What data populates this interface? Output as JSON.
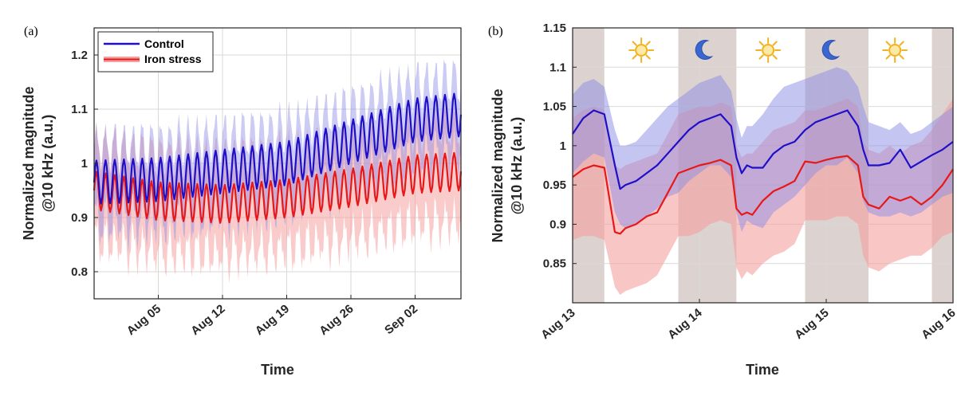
{
  "chart_data": [
    {
      "panel_label": "(a)",
      "type": "line",
      "xlabel": "Time",
      "ylabel_lines": [
        "Normalized magnitude",
        "@10 kHz (a.u.)"
      ],
      "x_range": [
        "2024-07-29",
        "2024-09-07"
      ],
      "ylim": [
        0.75,
        1.25
      ],
      "y_ticks": [
        0.8,
        0.9,
        1.0,
        1.1,
        1.2
      ],
      "y_tick_labels": [
        "0.8",
        "0.9",
        "1",
        "1.1",
        "1.2"
      ],
      "x_ticks": [
        "2024-08-05",
        "2024-08-12",
        "2024-08-19",
        "2024-08-26",
        "2024-09-02"
      ],
      "x_tick_labels": [
        "Aug 05",
        "Aug 12",
        "Aug 19",
        "Aug 26",
        "Sep 02"
      ],
      "grid": true,
      "legend_position": "top-left",
      "series": [
        {
          "name": "Control",
          "color": "#1f10c8",
          "band_color": "#8c8ce6",
          "trend_x": [
            "2024-07-29",
            "2024-08-05",
            "2024-08-12",
            "2024-08-19",
            "2024-08-26",
            "2024-09-02",
            "2024-09-07"
          ],
          "trend_mean": [
            0.965,
            0.97,
            0.985,
            1.0,
            1.04,
            1.08,
            1.09
          ],
          "daily_amplitude": 0.04,
          "band_half_width": 0.05
        },
        {
          "name": "Iron stress",
          "color": "#e81818",
          "band_color": "#f5a0a0",
          "trend_x": [
            "2024-07-29",
            "2024-08-05",
            "2024-08-12",
            "2024-08-19",
            "2024-08-26",
            "2024-09-02",
            "2024-09-07"
          ],
          "trend_mean": [
            0.95,
            0.93,
            0.925,
            0.935,
            0.955,
            0.98,
            0.985
          ],
          "daily_amplitude": 0.035,
          "band_half_width": 0.07
        }
      ]
    },
    {
      "panel_label": "(b)",
      "type": "line",
      "xlabel": "Time",
      "ylabel_lines": [
        "Normalized magnitude",
        "@10 kHz (a.u.)"
      ],
      "x_range": [
        "2024-08-13T00:00",
        "2024-08-16T00:00"
      ],
      "ylim": [
        0.8,
        1.15
      ],
      "y_ticks": [
        0.85,
        0.9,
        0.95,
        1.0,
        1.05,
        1.1,
        1.15
      ],
      "y_tick_labels": [
        "0.85",
        "0.9",
        "0.95",
        "1",
        "1.05",
        "1.1",
        "1.15"
      ],
      "x_ticks": [
        "2024-08-13T00:00",
        "2024-08-14T00:00",
        "2024-08-15T00:00",
        "2024-08-16T00:00"
      ],
      "x_tick_labels": [
        "Aug 13",
        "Aug 14",
        "Aug 15",
        "Aug 16"
      ],
      "grid": true,
      "night_periods": [
        [
          "2024-08-13T00:00",
          "2024-08-13T06:00"
        ],
        [
          "2024-08-13T20:00",
          "2024-08-14T07:00"
        ],
        [
          "2024-08-14T20:00",
          "2024-08-15T08:00"
        ],
        [
          "2024-08-15T20:00",
          "2024-08-16T00:00"
        ]
      ],
      "icons": [
        {
          "type": "sun-icon",
          "at": "2024-08-13T13:00"
        },
        {
          "type": "moon-icon",
          "at": "2024-08-14T01:00"
        },
        {
          "type": "sun-icon",
          "at": "2024-08-14T13:00"
        },
        {
          "type": "moon-icon",
          "at": "2024-08-15T01:00"
        },
        {
          "type": "sun-icon",
          "at": "2024-08-15T13:00"
        }
      ],
      "series": [
        {
          "name": "Control",
          "color": "#1f10c8",
          "band_color": "#8c8ce6",
          "x": [
            "2024-08-13T00:00",
            "2024-08-13T02:00",
            "2024-08-13T04:00",
            "2024-08-13T06:00",
            "2024-08-13T08:00",
            "2024-08-13T09:00",
            "2024-08-13T10:00",
            "2024-08-13T12:00",
            "2024-08-13T14:00",
            "2024-08-13T16:00",
            "2024-08-13T18:00",
            "2024-08-13T20:00",
            "2024-08-13T22:00",
            "2024-08-14T00:00",
            "2024-08-14T02:00",
            "2024-08-14T04:00",
            "2024-08-14T06:00",
            "2024-08-14T07:00",
            "2024-08-14T08:00",
            "2024-08-14T09:00",
            "2024-08-14T10:00",
            "2024-08-14T12:00",
            "2024-08-14T14:00",
            "2024-08-14T16:00",
            "2024-08-14T18:00",
            "2024-08-14T20:00",
            "2024-08-14T22:00",
            "2024-08-15T00:00",
            "2024-08-15T02:00",
            "2024-08-15T04:00",
            "2024-08-15T06:00",
            "2024-08-15T07:00",
            "2024-08-15T08:00",
            "2024-08-15T10:00",
            "2024-08-15T12:00",
            "2024-08-15T14:00",
            "2024-08-15T16:00",
            "2024-08-15T18:00",
            "2024-08-15T20:00",
            "2024-08-15T22:00",
            "2024-08-16T00:00"
          ],
          "mean": [
            1.015,
            1.035,
            1.045,
            1.04,
            0.975,
            0.945,
            0.95,
            0.955,
            0.965,
            0.975,
            0.99,
            1.005,
            1.02,
            1.03,
            1.035,
            1.04,
            1.025,
            0.985,
            0.965,
            0.975,
            0.972,
            0.972,
            0.99,
            1.0,
            1.005,
            1.02,
            1.03,
            1.035,
            1.04,
            1.045,
            1.025,
            0.995,
            0.975,
            0.975,
            0.978,
            0.995,
            0.972,
            0.98,
            0.988,
            0.995,
            1.005
          ],
          "upper": [
            1.065,
            1.08,
            1.085,
            1.075,
            1.02,
            1.0,
            1.0,
            1.005,
            1.02,
            1.035,
            1.05,
            1.06,
            1.07,
            1.08,
            1.085,
            1.09,
            1.07,
            1.035,
            1.01,
            1.025,
            1.025,
            1.04,
            1.06,
            1.075,
            1.08,
            1.085,
            1.09,
            1.095,
            1.1,
            1.095,
            1.075,
            1.05,
            1.03,
            1.025,
            1.02,
            1.03,
            1.015,
            1.02,
            1.03,
            1.04,
            1.05
          ],
          "lower": [
            0.965,
            0.98,
            0.99,
            0.985,
            0.915,
            0.9,
            0.895,
            0.9,
            0.91,
            0.92,
            0.935,
            0.94,
            0.955,
            0.965,
            0.975,
            0.975,
            0.96,
            0.915,
            0.89,
            0.905,
            0.9,
            0.895,
            0.915,
            0.925,
            0.935,
            0.95,
            0.965,
            0.975,
            0.975,
            0.985,
            0.965,
            0.93,
            0.915,
            0.91,
            0.91,
            0.915,
            0.91,
            0.915,
            0.925,
            0.935,
            0.94
          ]
        },
        {
          "name": "Iron stress",
          "color": "#e81818",
          "band_color": "#f5a0a0",
          "x": [
            "2024-08-13T00:00",
            "2024-08-13T02:00",
            "2024-08-13T04:00",
            "2024-08-13T06:00",
            "2024-08-13T08:00",
            "2024-08-13T09:00",
            "2024-08-13T10:00",
            "2024-08-13T12:00",
            "2024-08-13T14:00",
            "2024-08-13T16:00",
            "2024-08-13T18:00",
            "2024-08-13T20:00",
            "2024-08-13T22:00",
            "2024-08-14T00:00",
            "2024-08-14T02:00",
            "2024-08-14T04:00",
            "2024-08-14T06:00",
            "2024-08-14T07:00",
            "2024-08-14T08:00",
            "2024-08-14T09:00",
            "2024-08-14T10:00",
            "2024-08-14T12:00",
            "2024-08-14T14:00",
            "2024-08-14T16:00",
            "2024-08-14T18:00",
            "2024-08-14T20:00",
            "2024-08-14T22:00",
            "2024-08-15T00:00",
            "2024-08-15T02:00",
            "2024-08-15T04:00",
            "2024-08-15T06:00",
            "2024-08-15T07:00",
            "2024-08-15T08:00",
            "2024-08-15T10:00",
            "2024-08-15T12:00",
            "2024-08-15T14:00",
            "2024-08-15T16:00",
            "2024-08-15T18:00",
            "2024-08-15T20:00",
            "2024-08-15T22:00",
            "2024-08-16T00:00"
          ],
          "mean": [
            0.96,
            0.97,
            0.975,
            0.972,
            0.89,
            0.888,
            0.895,
            0.9,
            0.91,
            0.915,
            0.94,
            0.965,
            0.97,
            0.975,
            0.978,
            0.982,
            0.975,
            0.92,
            0.912,
            0.915,
            0.912,
            0.93,
            0.942,
            0.948,
            0.955,
            0.98,
            0.978,
            0.982,
            0.985,
            0.987,
            0.975,
            0.935,
            0.925,
            0.92,
            0.935,
            0.93,
            0.935,
            0.925,
            0.935,
            0.95,
            0.97
          ],
          "upper": [
            1.035,
            1.045,
            1.05,
            1.045,
            0.975,
            0.97,
            0.975,
            0.98,
            0.985,
            0.99,
            1.015,
            1.04,
            1.045,
            1.05,
            1.05,
            1.055,
            1.05,
            1.0,
            0.985,
            0.99,
            0.99,
            1.005,
            1.02,
            1.025,
            1.03,
            1.045,
            1.045,
            1.05,
            1.055,
            1.06,
            1.05,
            1.005,
            0.995,
            0.99,
            1.0,
            0.99,
            1.0,
            1.005,
            1.02,
            1.04,
            1.06
          ],
          "lower": [
            0.88,
            0.885,
            0.885,
            0.88,
            0.82,
            0.81,
            0.815,
            0.82,
            0.825,
            0.835,
            0.86,
            0.885,
            0.885,
            0.89,
            0.9,
            0.905,
            0.9,
            0.845,
            0.83,
            0.84,
            0.835,
            0.85,
            0.86,
            0.865,
            0.875,
            0.905,
            0.905,
            0.905,
            0.91,
            0.91,
            0.9,
            0.86,
            0.845,
            0.84,
            0.85,
            0.855,
            0.86,
            0.86,
            0.87,
            0.885,
            0.89
          ]
        }
      ]
    }
  ]
}
